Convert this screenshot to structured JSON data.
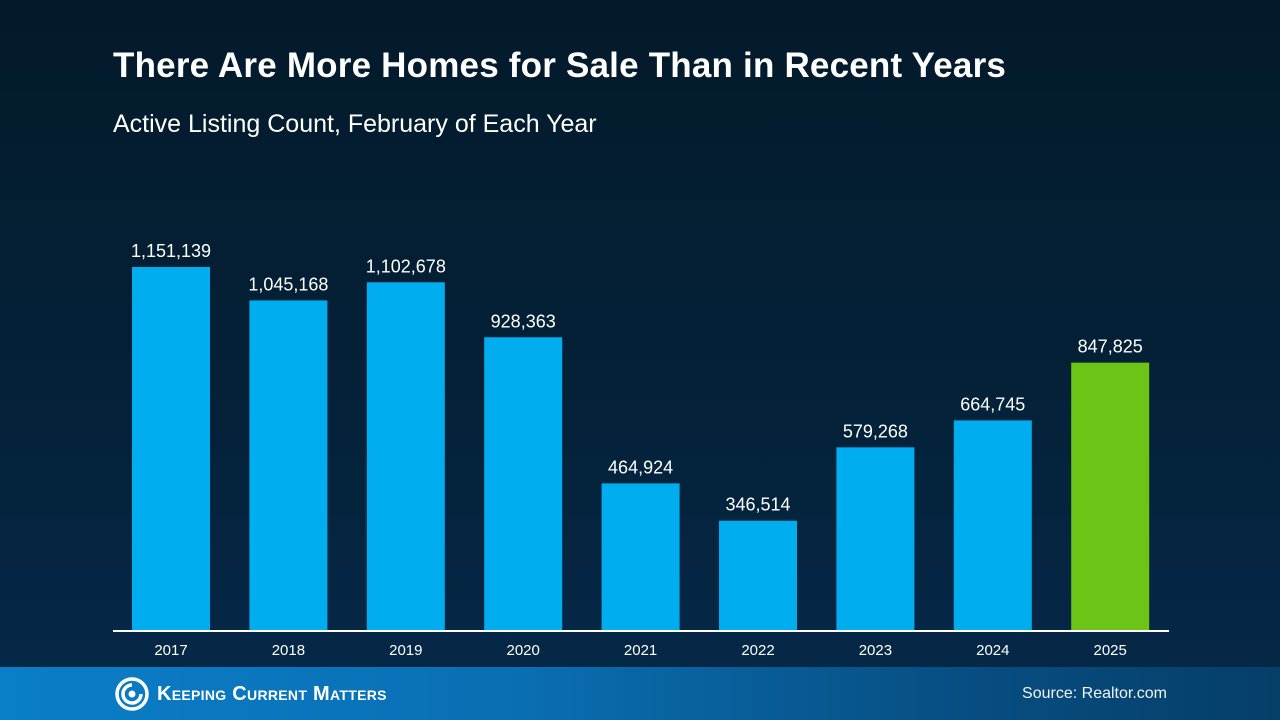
{
  "header": {
    "title": "There Are More Homes for Sale Than in Recent Years",
    "subtitle": "Active Listing Count, February of Each Year"
  },
  "footer": {
    "logo_text": "Keeping Current Matters",
    "source": "Source: Realtor.com"
  },
  "colors": {
    "bar_default": "#00aeef",
    "bar_highlight": "#6cc516",
    "axis_line": "#ffffff",
    "text": "#ffffff"
  },
  "chart_data": {
    "type": "bar",
    "title": "There Are More Homes for Sale Than in Recent Years",
    "subtitle": "Active Listing Count, February of Each Year",
    "xlabel": "",
    "ylabel": "",
    "categories": [
      "2017",
      "2018",
      "2019",
      "2020",
      "2021",
      "2022",
      "2023",
      "2024",
      "2025"
    ],
    "values": [
      1151139,
      1045168,
      1102678,
      928363,
      464924,
      346514,
      579268,
      664745,
      847825
    ],
    "labels": [
      "1,151,139",
      "1,045,168",
      "1,102,678",
      "928,363",
      "464,924",
      "346,514",
      "579,268",
      "664,745",
      "847,825"
    ],
    "highlight_index": 8,
    "ylim": [
      0,
      1151139
    ],
    "grid": false,
    "legend": "none",
    "source": "Realtor.com"
  }
}
